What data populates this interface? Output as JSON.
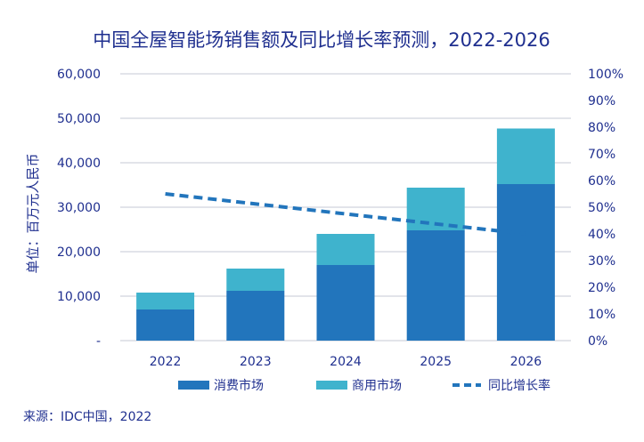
{
  "chart_data": {
    "type": "bar",
    "title": "中国全屋智能场销售额及同比增长率预测，2022-2026",
    "ylabel": "单位：百万元人民币",
    "categories": [
      "2022",
      "2023",
      "2024",
      "2025",
      "2026"
    ],
    "ylim": [
      0,
      60000
    ],
    "y_ticks": [
      "-",
      "10,000",
      "20,000",
      "30,000",
      "40,000",
      "50,000",
      "60,000"
    ],
    "y2lim": [
      0,
      100
    ],
    "y2_ticks": [
      "0%",
      "10%",
      "20%",
      "30%",
      "40%",
      "50%",
      "60%",
      "70%",
      "80%",
      "90%",
      "100%"
    ],
    "grid": true,
    "legend_position": "bottom",
    "series": [
      {
        "name": "消费市场",
        "kind": "bar",
        "stack": true,
        "axis": "left",
        "color": "#2275bc",
        "values": [
          7000,
          11200,
          17000,
          24800,
          35200
        ]
      },
      {
        "name": "商用市场",
        "kind": "bar",
        "stack": true,
        "axis": "left",
        "color": "#3fb3cd",
        "values": [
          3800,
          5000,
          7000,
          9600,
          12500
        ]
      },
      {
        "name": "同比增长率",
        "kind": "line",
        "style": "dashed",
        "axis": "right",
        "color": "#2275bc",
        "values": [
          55,
          null,
          null,
          null,
          40
        ]
      }
    ],
    "source": "来源：IDC中国，2022"
  }
}
